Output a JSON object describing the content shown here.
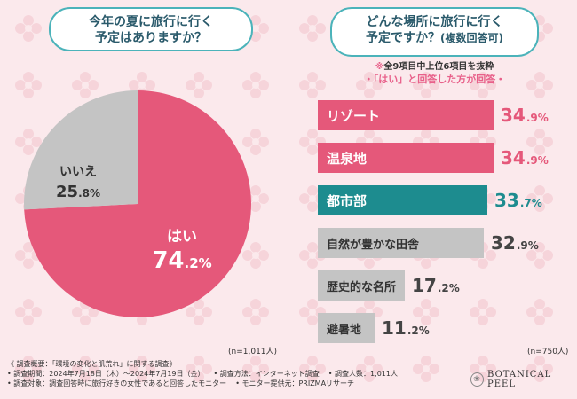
{
  "colors": {
    "pink": "#e5587a",
    "teal": "#1d8c8f",
    "gray": "#c4c4c4",
    "background": "#fbe9ec",
    "box_border": "#4bb3ba"
  },
  "left_question": [
    "今年の夏に旅行に行く",
    "予定はありますか？"
  ],
  "right_question": {
    "line1": "どんな場所に旅行に行く",
    "line2": "予定ですか？",
    "line2_note": "(複数回答可)"
  },
  "note": {
    "mark": "※",
    "text": "全9項目中上位6項目を抜粋"
  },
  "sub_title": "・「はい」と回答した方が回答・",
  "left_n": "(n=1,011人)",
  "right_n": "(n=750人)",
  "footer": {
    "rows": [
      [
        "《 調査概要：「環境の変化と肌荒れ」に関する調査》"
      ],
      [
        "• 調査期間：2024年7月18日（木）〜2024年7月19日（金）",
        "• 調査方法：インターネット調査",
        "• 調査人数：1,011人"
      ],
      [
        "• 調査対象：調査回答時に旅行好きの女性であると回答したモニター",
        "• モニター提供元：PRIZMAリサーチ"
      ]
    ]
  },
  "brand": {
    "name": "BOTANICAL PEEL",
    "logo_icon": "botanical-leaf-icon"
  },
  "chart_data": [
    {
      "type": "pie",
      "slices": [
        {
          "label": "はい",
          "value": 74.2,
          "value_big": "74",
          "value_small": ".2%",
          "color": "#e5587a"
        },
        {
          "label": "いいえ",
          "value": 25.8,
          "value_big": "25",
          "value_small": ".8%",
          "color": "#c4c4c4"
        }
      ]
    },
    {
      "type": "bar",
      "orientation": "horizontal",
      "xlim": [
        0,
        34.9
      ],
      "bars": [
        {
          "label": "リゾート",
          "value": 34.9,
          "value_big": "34",
          "value_small": ".9%",
          "style": "pink"
        },
        {
          "label": "温泉地",
          "value": 34.9,
          "value_big": "34",
          "value_small": ".9%",
          "style": "pink"
        },
        {
          "label": "都市部",
          "value": 33.7,
          "value_big": "33",
          "value_small": ".7%",
          "style": "teal"
        },
        {
          "label": "自然が豊かな田舎",
          "value": 32.9,
          "value_big": "32",
          "value_small": ".9%",
          "style": "gray"
        },
        {
          "label": "歴史的な名所",
          "value": 17.2,
          "value_big": "17",
          "value_small": ".2%",
          "style": "gray"
        },
        {
          "label": "避暑地",
          "value": 11.2,
          "value_big": "11",
          "value_small": ".2%",
          "style": "gray"
        }
      ]
    }
  ]
}
